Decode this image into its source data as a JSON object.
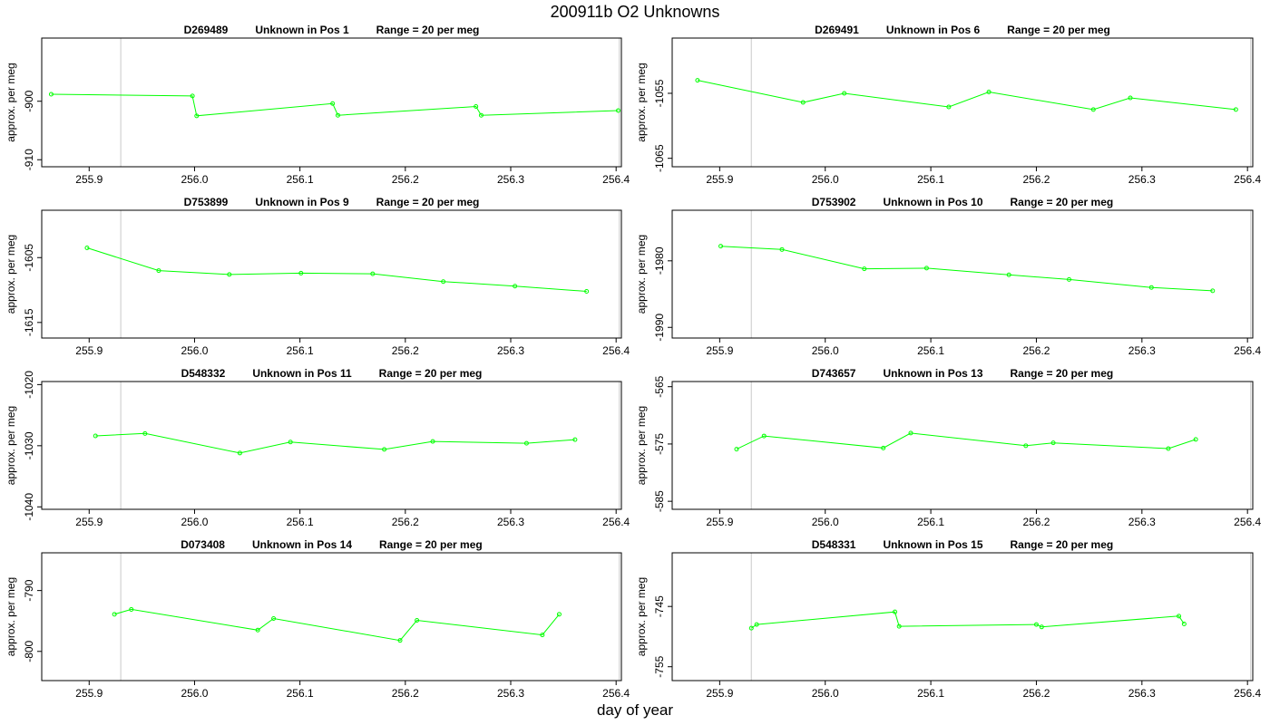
{
  "figure": {
    "title": "200911b  O2 Unknowns",
    "xlabel": "day of year"
  },
  "chart_data": [
    {
      "type": "line",
      "title_parts": [
        "D269489",
        "Unknown in Pos 1",
        "Range = 20 per meg"
      ],
      "ylabel": "approx. per meg",
      "xlim": [
        255.855,
        256.405
      ],
      "ylim": [
        -911.2,
        -889.2
      ],
      "x_ticks": [
        255.9,
        256.0,
        256.1,
        256.2,
        256.3,
        256.4
      ],
      "y_ticks": [
        -910,
        -900
      ],
      "vlines": [
        255.93,
        256.403
      ],
      "color": "#00ff00",
      "x": [
        255.864,
        255.998,
        256.002,
        256.131,
        256.136,
        256.267,
        256.272,
        256.402
      ],
      "y": [
        -898.8,
        -899.1,
        -902.5,
        -900.4,
        -902.4,
        -900.9,
        -902.4,
        -901.6
      ]
    },
    {
      "type": "line",
      "title_parts": [
        "D269491",
        "Unknown in Pos 6",
        "Range = 20 per meg"
      ],
      "ylabel": "approx. per meg",
      "xlim": [
        255.855,
        256.405
      ],
      "ylim": [
        -1066.3,
        -1046.5
      ],
      "x_ticks": [
        255.9,
        256.0,
        256.1,
        256.2,
        256.3,
        256.4
      ],
      "y_ticks": [
        -1065,
        -1055
      ],
      "vlines": [
        255.93,
        256.403
      ],
      "color": "#00ff00",
      "x": [
        255.879,
        255.979,
        256.018,
        256.117,
        256.155,
        256.254,
        256.289,
        256.389
      ],
      "y": [
        -1053.0,
        -1056.4,
        -1055.0,
        -1057.1,
        -1054.8,
        -1057.5,
        -1055.7,
        -1057.5
      ]
    },
    {
      "type": "line",
      "title_parts": [
        "D753899",
        "Unknown in Pos 9",
        "Range = 20 per meg"
      ],
      "ylabel": "approx. per meg",
      "xlim": [
        255.855,
        256.405
      ],
      "ylim": [
        -1617.4,
        -1597.7
      ],
      "x_ticks": [
        255.9,
        256.0,
        256.1,
        256.2,
        256.3,
        256.4
      ],
      "y_ticks": [
        -1615,
        -1605
      ],
      "vlines": [
        255.93,
        256.403
      ],
      "color": "#00ff00",
      "x": [
        255.898,
        255.966,
        256.033,
        256.101,
        256.169,
        256.236,
        256.304,
        256.372
      ],
      "y": [
        -1603.5,
        -1607.0,
        -1607.6,
        -1607.4,
        -1607.5,
        -1608.7,
        -1609.4,
        -1610.2
      ]
    },
    {
      "type": "line",
      "title_parts": [
        "D753902",
        "Unknown in Pos 10",
        "Range = 20 per meg"
      ],
      "ylabel": "approx. per meg",
      "xlim": [
        255.855,
        256.405
      ],
      "ylim": [
        -1991.6,
        -1972.4
      ],
      "x_ticks": [
        255.9,
        256.0,
        256.1,
        256.2,
        256.3,
        256.4
      ],
      "y_ticks": [
        -1990,
        -1980
      ],
      "vlines": [
        255.93,
        256.403
      ],
      "color": "#00ff00",
      "x": [
        255.901,
        255.959,
        256.037,
        256.096,
        256.174,
        256.231,
        256.309,
        256.367
      ],
      "y": [
        -1977.8,
        -1978.3,
        -1981.2,
        -1981.1,
        -1982.1,
        -1982.8,
        -1984.0,
        -1984.5
      ]
    },
    {
      "type": "line",
      "title_parts": [
        "D548332",
        "Unknown in Pos 11",
        "Range = 20 per meg"
      ],
      "ylabel": "approx. per meg",
      "xlim": [
        255.855,
        256.405
      ],
      "ylim": [
        -1040.4,
        -1019.5
      ],
      "x_ticks": [
        255.9,
        256.0,
        256.1,
        256.2,
        256.3,
        256.4
      ],
      "y_ticks": [
        -1040,
        -1030,
        -1020
      ],
      "vlines": [
        255.93,
        256.403
      ],
      "color": "#00ff00",
      "x": [
        255.906,
        255.953,
        256.043,
        256.091,
        256.18,
        256.226,
        256.315,
        256.361
      ],
      "y": [
        -1028.4,
        -1028.0,
        -1031.2,
        -1029.4,
        -1030.6,
        -1029.3,
        -1029.6,
        -1029.0
      ]
    },
    {
      "type": "line",
      "title_parts": [
        "D743657",
        "Unknown in Pos 13",
        "Range = 20 per meg"
      ],
      "ylabel": "approx. per meg",
      "xlim": [
        255.855,
        256.405
      ],
      "ylim": [
        -586.4,
        -564.1
      ],
      "x_ticks": [
        255.9,
        256.0,
        256.1,
        256.2,
        256.3,
        256.4
      ],
      "y_ticks": [
        -585,
        -575,
        -565
      ],
      "vlines": [
        255.93,
        256.403
      ],
      "color": "#00ff00",
      "x": [
        255.916,
        255.942,
        256.055,
        256.081,
        256.19,
        256.216,
        256.325,
        256.351
      ],
      "y": [
        -575.9,
        -573.6,
        -575.7,
        -573.1,
        -575.3,
        -574.8,
        -575.8,
        -574.2
      ]
    },
    {
      "type": "line",
      "title_parts": [
        "D073408",
        "Unknown in Pos 14",
        "Range = 20 per meg"
      ],
      "ylabel": "approx. per meg",
      "xlim": [
        255.855,
        256.405
      ],
      "ylim": [
        -804.8,
        -783.8
      ],
      "x_ticks": [
        255.9,
        256.0,
        256.1,
        256.2,
        256.3,
        256.4
      ],
      "y_ticks": [
        -800,
        -790
      ],
      "vlines": [
        255.93,
        256.403
      ],
      "color": "#00ff00",
      "x": [
        255.924,
        255.94,
        256.06,
        256.075,
        256.195,
        256.211,
        256.33,
        256.346
      ],
      "y": [
        -793.9,
        -793.1,
        -796.5,
        -794.6,
        -798.2,
        -794.9,
        -797.3,
        -793.9
      ]
    },
    {
      "type": "line",
      "title_parts": [
        "D548331",
        "Unknown in Pos 15",
        "Range = 20 per meg"
      ],
      "ylabel": "approx. per meg",
      "xlim": [
        255.855,
        256.405
      ],
      "ylim": [
        -757.3,
        -736.1
      ],
      "x_ticks": [
        255.9,
        256.0,
        256.1,
        256.2,
        256.3,
        256.4
      ],
      "y_ticks": [
        -755,
        -745
      ],
      "vlines": [
        255.93,
        256.403
      ],
      "color": "#00ff00",
      "x": [
        255.93,
        255.935,
        256.066,
        256.07,
        256.2,
        256.205,
        256.335,
        256.34
      ],
      "y": [
        -748.6,
        -748.0,
        -745.9,
        -748.3,
        -748.0,
        -748.4,
        -746.6,
        -747.9
      ]
    }
  ]
}
